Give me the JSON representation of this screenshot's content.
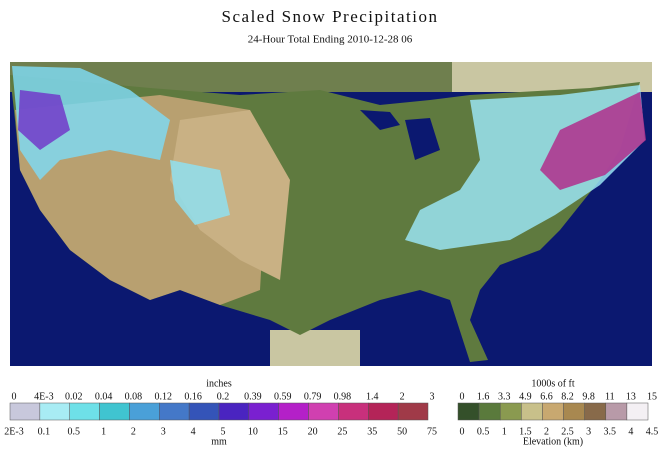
{
  "header": {
    "title": "Scaled Snow Precipitation",
    "subtitle": "24-Hour Total Ending 2010-12-28 06"
  },
  "snow_legend": {
    "top_unit": "inches",
    "top_labels": [
      "0",
      "4E-3",
      "0.02",
      "0.04",
      "0.08",
      "0.12",
      "0.16",
      "0.2",
      "0.39",
      "0.59",
      "0.79",
      "0.98",
      "1.4",
      "2",
      "3"
    ],
    "bottom_labels": [
      "2E-3",
      "0.1",
      "0.5",
      "1",
      "2",
      "3",
      "4",
      "5",
      "10",
      "15",
      "20",
      "25",
      "35",
      "50",
      "75"
    ],
    "bottom_unit": "mm"
  },
  "elevation_legend": {
    "top_unit": "1000s of ft",
    "top_labels": [
      "0",
      "1.6",
      "3.3",
      "4.9",
      "6.6",
      "8.2",
      "9.8",
      "11",
      "13",
      "15"
    ],
    "bottom_labels": [
      "0",
      "0.5",
      "1",
      "1.5",
      "2",
      "2.5",
      "3",
      "3.5",
      "4",
      "4.5"
    ],
    "bottom_unit": "Elevation (km)"
  }
}
